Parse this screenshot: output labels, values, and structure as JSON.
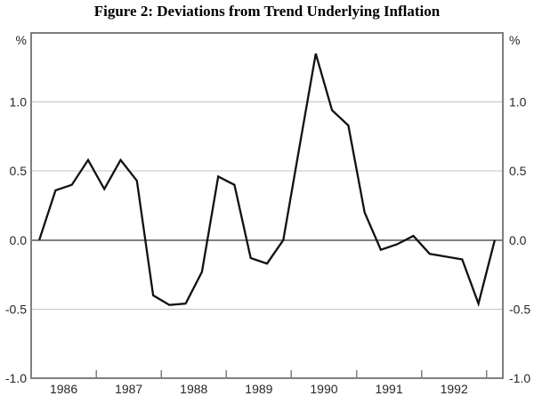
{
  "title": "Figure 2: Deviations from Trend Underlying Inflation",
  "chart_data": {
    "type": "line",
    "title": "Figure 2: Deviations from Trend Underlying Inflation",
    "unit_left": "%",
    "unit_right": "%",
    "x_year_labels": [
      "1986",
      "1987",
      "1988",
      "1989",
      "1990",
      "1991",
      "1992"
    ],
    "y_tick_labels": [
      "1.0",
      "0.5",
      "0.0",
      "-0.5",
      "-1.0"
    ],
    "y_tick_values": [
      1.0,
      0.5,
      0.0,
      -0.5,
      -1.0
    ],
    "gridline_values": [
      1.0,
      0.5,
      -0.5
    ],
    "ylim": [
      -1.0,
      1.5
    ],
    "xlim_years": [
      1986.0,
      1993.25
    ],
    "grid": true,
    "legend": "none",
    "series": [
      {
        "name": "Deviation from trend underlying inflation (%)",
        "quarters": [
          "1986Q1",
          "1986Q2",
          "1986Q3",
          "1986Q4",
          "1987Q1",
          "1987Q2",
          "1987Q3",
          "1987Q4",
          "1988Q1",
          "1988Q2",
          "1988Q3",
          "1988Q4",
          "1989Q1",
          "1989Q2",
          "1989Q3",
          "1989Q4",
          "1990Q1",
          "1990Q2",
          "1990Q3",
          "1990Q4",
          "1991Q1",
          "1991Q2",
          "1991Q3",
          "1991Q4",
          "1992Q1",
          "1992Q2",
          "1992Q3",
          "1992Q4",
          "1993Q1"
        ],
        "values": [
          0.0,
          0.36,
          0.4,
          0.58,
          0.37,
          0.58,
          0.43,
          -0.4,
          -0.47,
          -0.46,
          -0.23,
          0.46,
          0.4,
          -0.13,
          -0.17,
          0.0,
          0.68,
          1.35,
          0.94,
          0.83,
          0.2,
          -0.07,
          -0.03,
          0.03,
          -0.1,
          -0.12,
          -0.14,
          -0.46,
          0.0
        ]
      }
    ],
    "colors": {
      "line": "#111111",
      "frame": "#7f7f7f",
      "grid": "#c4c4c4",
      "zero_line": "#7f7f7f",
      "tick_text": "#262626",
      "title_text": "#000000",
      "background": "#ffffff"
    }
  }
}
